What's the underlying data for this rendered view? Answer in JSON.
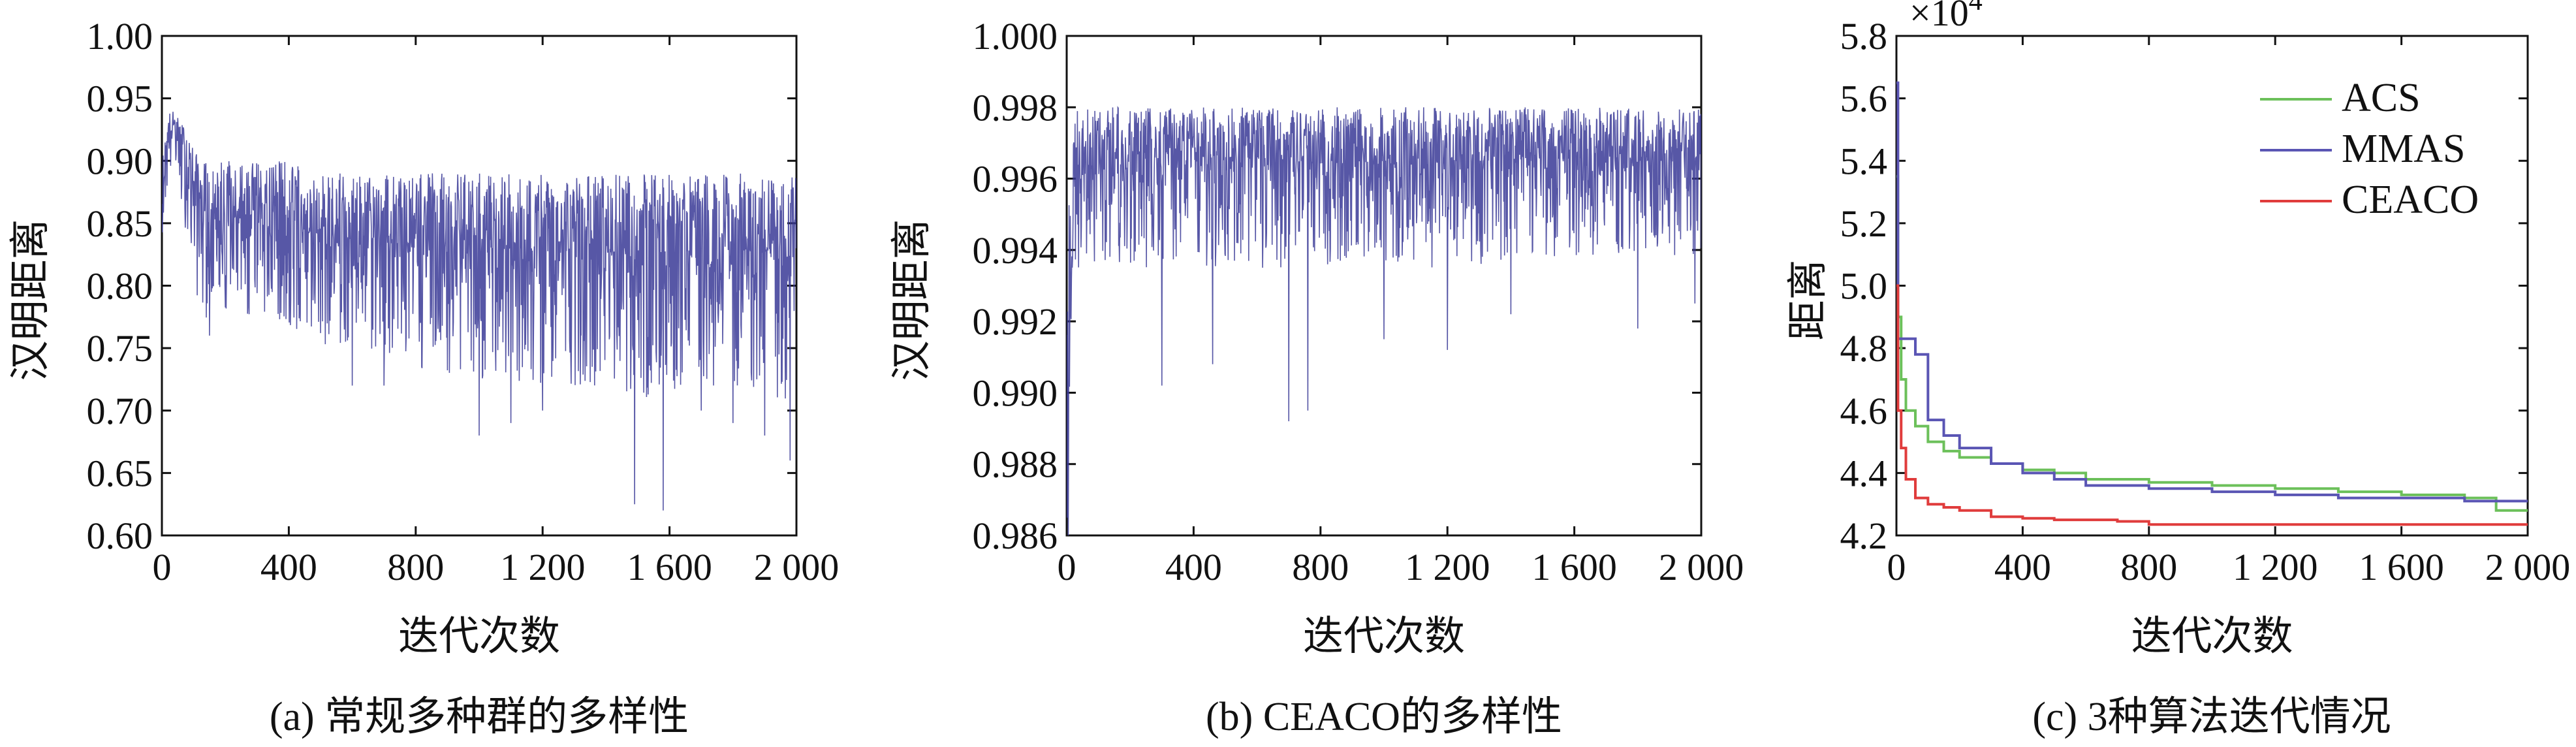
{
  "chart_data": [
    {
      "type": "line",
      "caption": "(a) 常规多种群的多样性",
      "xlabel": "迭代次数",
      "ylabel": "汉明距离",
      "xlim": [
        0,
        2000
      ],
      "ylim": [
        0.6,
        1.0
      ],
      "xticks": [
        "0",
        "400",
        "800",
        "1 200",
        "1 600",
        "2 000"
      ],
      "yticks": [
        "0.60",
        "0.65",
        "0.70",
        "0.75",
        "0.80",
        "0.85",
        "0.90",
        "0.95",
        "1.00"
      ],
      "series": [
        {
          "color": "#3a3a96",
          "x": [
            0,
            20,
            40,
            60,
            80,
            100,
            120,
            150,
            200,
            300,
            400,
            500,
            600,
            700,
            800,
            900,
            1000,
            1100,
            1200,
            1300,
            1400,
            1500,
            1600,
            1700,
            1800,
            1900,
            2000
          ],
          "y": [
            0.87,
            0.92,
            0.93,
            0.91,
            0.9,
            0.88,
            0.87,
            0.85,
            0.85,
            0.85,
            0.85,
            0.84,
            0.84,
            0.84,
            0.83,
            0.83,
            0.83,
            0.83,
            0.83,
            0.83,
            0.83,
            0.83,
            0.83,
            0.83,
            0.83,
            0.83,
            0.83
          ],
          "band_low": [
            0.84,
            0.88,
            0.9,
            0.86,
            0.84,
            0.8,
            0.78,
            0.77,
            0.78,
            0.77,
            0.76,
            0.75,
            0.75,
            0.74,
            0.73,
            0.73,
            0.72,
            0.72,
            0.72,
            0.72,
            0.72,
            0.71,
            0.71,
            0.72,
            0.72,
            0.71,
            0.7
          ],
          "band_high": [
            0.9,
            0.94,
            0.94,
            0.93,
            0.93,
            0.91,
            0.9,
            0.9,
            0.9,
            0.9,
            0.9,
            0.89,
            0.89,
            0.89,
            0.89,
            0.89,
            0.89,
            0.89,
            0.89,
            0.89,
            0.89,
            0.89,
            0.89,
            0.89,
            0.89,
            0.89,
            0.89
          ],
          "spikes": [
            [
              150,
              0.76
            ],
            [
              600,
              0.72
            ],
            [
              700,
              0.72
            ],
            [
              1000,
              0.68
            ],
            [
              1100,
              0.69
            ],
            [
              1200,
              0.7
            ],
            [
              1490,
              0.625
            ],
            [
              1580,
              0.62
            ],
            [
              1700,
              0.7
            ],
            [
              1800,
              0.69
            ],
            [
              1900,
              0.68
            ],
            [
              1980,
              0.66
            ]
          ]
        }
      ]
    },
    {
      "type": "line",
      "caption": "(b) CEACO的多样性",
      "xlabel": "迭代次数",
      "ylabel": "汉明距离",
      "xlim": [
        0,
        2000
      ],
      "ylim": [
        0.986,
        1.0
      ],
      "xticks": [
        "0",
        "400",
        "800",
        "1 200",
        "1 600",
        "2 000"
      ],
      "yticks": [
        "0.986",
        "0.988",
        "0.990",
        "0.992",
        "0.994",
        "0.996",
        "0.998",
        "1.000"
      ],
      "series": [
        {
          "color": "#3a3a96",
          "x": [
            0,
            20,
            100,
            200,
            300,
            400,
            500,
            600,
            700,
            800,
            900,
            1000,
            1100,
            1200,
            1300,
            1400,
            1500,
            1600,
            1700,
            1800,
            1900,
            2000
          ],
          "y": [
            0.986,
            0.9962,
            0.9965,
            0.9966,
            0.9966,
            0.9966,
            0.9966,
            0.9966,
            0.9965,
            0.9965,
            0.9965,
            0.9965,
            0.9965,
            0.9965,
            0.9965,
            0.9966,
            0.9966,
            0.9966,
            0.9966,
            0.9966,
            0.9966,
            0.9966
          ],
          "band_low": [
            0.986,
            0.9935,
            0.9935,
            0.9935,
            0.9935,
            0.9935,
            0.9935,
            0.9935,
            0.9935,
            0.9935,
            0.9935,
            0.9935,
            0.9935,
            0.9935,
            0.9935,
            0.9938,
            0.9938,
            0.9938,
            0.9938,
            0.9938,
            0.9938,
            0.9938
          ],
          "band_high": [
            0.9975,
            0.998,
            0.998,
            0.998,
            0.998,
            0.998,
            0.998,
            0.998,
            0.998,
            0.998,
            0.998,
            0.998,
            0.998,
            0.998,
            0.998,
            0.998,
            0.998,
            0.998,
            0.998,
            0.998,
            0.998,
            0.998
          ],
          "spikes": [
            [
              5,
              0.986
            ],
            [
              300,
              0.9902
            ],
            [
              460,
              0.9908
            ],
            [
              700,
              0.9892
            ],
            [
              760,
              0.9895
            ],
            [
              1000,
              0.9915
            ],
            [
              1200,
              0.9912
            ],
            [
              1400,
              0.9922
            ],
            [
              1800,
              0.9918
            ],
            [
              1980,
              0.9925
            ]
          ]
        }
      ]
    },
    {
      "type": "line",
      "caption": "(c) 3种算法迭代情况",
      "xlabel": "迭代次数",
      "ylabel": "距离",
      "scale_note": "×10",
      "scale_exp": "4",
      "xlim": [
        0,
        2000
      ],
      "ylim": [
        4.2,
        5.8
      ],
      "xticks": [
        "0",
        "400",
        "800",
        "1 200",
        "1 600",
        "2 000"
      ],
      "yticks": [
        "4.2",
        "4.4",
        "4.6",
        "4.8",
        "5.0",
        "5.2",
        "5.4",
        "5.6",
        "5.8"
      ],
      "legend": "top-right",
      "series": [
        {
          "name": "ACS",
          "color": "#6cc05a",
          "x": [
            0,
            5,
            15,
            30,
            60,
            100,
            150,
            200,
            300,
            400,
            500,
            600,
            800,
            1000,
            1200,
            1400,
            1600,
            1800,
            1900,
            2000
          ],
          "y": [
            5.35,
            4.9,
            4.7,
            4.6,
            4.55,
            4.5,
            4.47,
            4.45,
            4.43,
            4.41,
            4.4,
            4.38,
            4.37,
            4.36,
            4.35,
            4.34,
            4.33,
            4.32,
            4.28,
            4.28
          ]
        },
        {
          "name": "MMAS",
          "color": "#5a55b4",
          "x": [
            0,
            5,
            20,
            60,
            100,
            150,
            200,
            300,
            400,
            500,
            600,
            800,
            1000,
            1200,
            1400,
            1600,
            1800,
            2000
          ],
          "y": [
            5.65,
            4.83,
            4.83,
            4.78,
            4.57,
            4.52,
            4.48,
            4.43,
            4.4,
            4.38,
            4.36,
            4.35,
            4.34,
            4.33,
            4.32,
            4.32,
            4.31,
            4.31
          ]
        },
        {
          "name": "CEACO",
          "color": "#e03c3c",
          "x": [
            0,
            5,
            15,
            30,
            60,
            100,
            150,
            200,
            300,
            400,
            500,
            700,
            800,
            1000,
            1400,
            1800,
            2000
          ],
          "y": [
            5.0,
            4.6,
            4.48,
            4.38,
            4.32,
            4.3,
            4.29,
            4.28,
            4.26,
            4.255,
            4.25,
            4.245,
            4.235,
            4.235,
            4.235,
            4.235,
            4.235
          ]
        }
      ]
    }
  ]
}
